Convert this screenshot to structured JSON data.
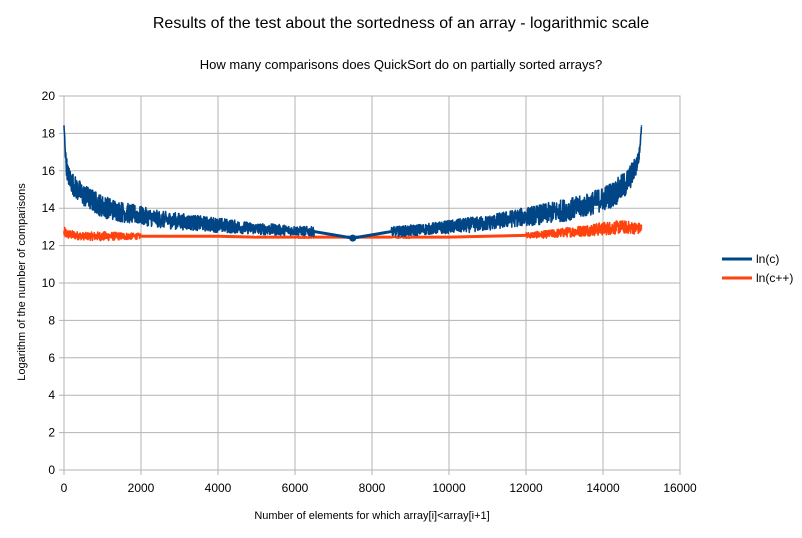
{
  "chart_data": {
    "type": "line",
    "title": "Results of the test about the sortedness of an array - logarithmic scale",
    "subtitle": "How many comparisons does QuickSort do on partially sorted arrays?",
    "xlabel": "Number of elements for which array[i]<array[i+1]",
    "ylabel": "Logarithm of the number of comparisons",
    "xlim": [
      0,
      16000
    ],
    "ylim": [
      0,
      20
    ],
    "xticks": [
      "0",
      "2000",
      "4000",
      "6000",
      "8000",
      "10000",
      "12000",
      "14000",
      "16000"
    ],
    "yticks": [
      "0",
      "2",
      "4",
      "6",
      "8",
      "10",
      "12",
      "14",
      "16",
      "18",
      "20"
    ],
    "grid": true,
    "legend_position": "right",
    "series": [
      {
        "name": "ln(c)",
        "color": "#004586",
        "x": [
          0,
          50,
          100,
          200,
          300,
          500,
          750,
          1000,
          1500,
          2000,
          2500,
          3000,
          3500,
          4000,
          4500,
          5000,
          5500,
          6000,
          6500,
          7500,
          8500,
          9000,
          9500,
          10000,
          10500,
          11000,
          11500,
          12000,
          12500,
          13000,
          13500,
          14000,
          14300,
          14600,
          14800,
          14900,
          14950,
          15000
        ],
        "y": [
          18.4,
          16.5,
          15.8,
          15.4,
          15.1,
          14.7,
          14.4,
          14.1,
          13.8,
          13.6,
          13.4,
          13.3,
          13.2,
          13.1,
          13.0,
          12.9,
          12.85,
          12.8,
          12.75,
          12.4,
          12.75,
          12.8,
          12.9,
          13.0,
          13.1,
          13.2,
          13.4,
          13.55,
          13.7,
          13.9,
          14.1,
          14.5,
          14.8,
          15.3,
          16.0,
          16.5,
          17.0,
          18.4
        ],
        "spread": [
          0.0,
          0.5,
          0.55,
          0.6,
          0.6,
          0.6,
          0.6,
          0.6,
          0.55,
          0.5,
          0.45,
          0.45,
          0.4,
          0.4,
          0.35,
          0.3,
          0.3,
          0.25,
          0.25,
          0.0,
          0.25,
          0.3,
          0.3,
          0.35,
          0.4,
          0.4,
          0.45,
          0.5,
          0.55,
          0.6,
          0.6,
          0.65,
          0.7,
          0.7,
          0.6,
          0.5,
          0.3,
          0.0
        ]
      },
      {
        "name": "ln(c++)",
        "color": "#ff420e",
        "x": [
          0,
          100,
          500,
          1000,
          1500,
          2000,
          3000,
          4000,
          5000,
          6000,
          6500,
          8500,
          9000,
          10000,
          11000,
          12000,
          12500,
          13000,
          13500,
          14000,
          14500,
          15000
        ],
        "y": [
          12.7,
          12.6,
          12.5,
          12.5,
          12.5,
          12.5,
          12.5,
          12.5,
          12.45,
          12.45,
          12.45,
          12.45,
          12.45,
          12.45,
          12.5,
          12.55,
          12.6,
          12.7,
          12.8,
          12.9,
          13.0,
          12.9
        ],
        "spread": [
          0.3,
          0.25,
          0.2,
          0.25,
          0.2,
          0.15,
          0.12,
          0.1,
          0.08,
          0.06,
          0.05,
          0.05,
          0.06,
          0.08,
          0.12,
          0.15,
          0.2,
          0.25,
          0.3,
          0.35,
          0.35,
          0.3
        ]
      }
    ]
  }
}
